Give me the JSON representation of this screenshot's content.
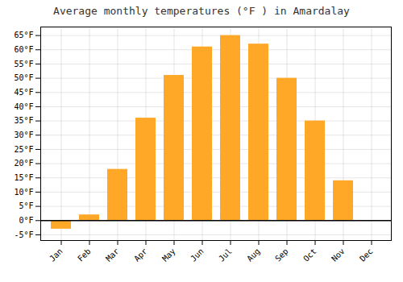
{
  "chart_data": {
    "type": "bar",
    "title": "Average monthly temperatures (°F ) in Amardalay",
    "categories": [
      "Jan",
      "Feb",
      "Mar",
      "Apr",
      "May",
      "Jun",
      "Jul",
      "Aug",
      "Sep",
      "Oct",
      "Nov",
      "Dec"
    ],
    "values": [
      -3,
      2,
      18,
      36,
      51,
      61,
      65,
      62,
      50,
      35,
      14,
      0
    ],
    "color": "#FFA726",
    "ylim": [
      -7,
      68
    ],
    "yticks": [
      {
        "value": -5,
        "label": "-5°F"
      },
      {
        "value": 0,
        "label": "0°F"
      },
      {
        "value": 5,
        "label": "5°F"
      },
      {
        "value": 10,
        "label": "10°F"
      },
      {
        "value": 15,
        "label": "15°F"
      },
      {
        "value": 20,
        "label": "20°F"
      },
      {
        "value": 25,
        "label": "25°F"
      },
      {
        "value": 30,
        "label": "30°F"
      },
      {
        "value": 35,
        "label": "35°F"
      },
      {
        "value": 40,
        "label": "40°F"
      },
      {
        "value": 45,
        "label": "45°F"
      },
      {
        "value": 50,
        "label": "50°F"
      },
      {
        "value": 55,
        "label": "55°F"
      },
      {
        "value": 60,
        "label": "60°F"
      },
      {
        "value": 65,
        "label": "65°F"
      }
    ],
    "grid": true
  }
}
